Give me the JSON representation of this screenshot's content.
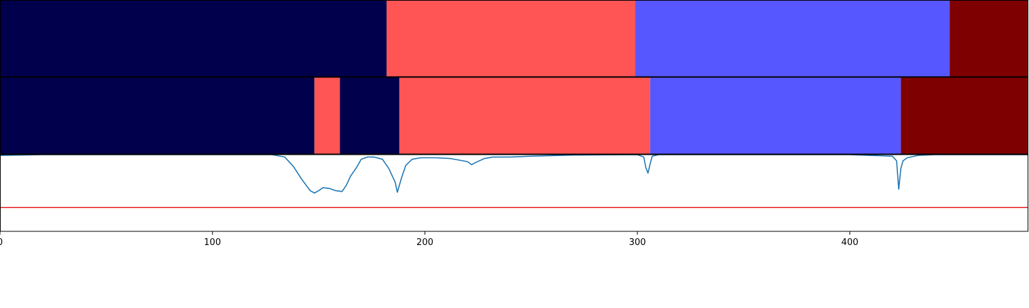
{
  "chart_data": [
    {
      "type": "segment_bar",
      "panel": "top",
      "segments": [
        {
          "start": 0,
          "end": 182,
          "color": "#00004c"
        },
        {
          "start": 182,
          "end": 299,
          "color": "#ff5555"
        },
        {
          "start": 299,
          "end": 447,
          "color": "#5757ff"
        },
        {
          "start": 447,
          "end": 484,
          "color": "#7f0000"
        }
      ]
    },
    {
      "type": "segment_bar",
      "panel": "middle",
      "segments": [
        {
          "start": 0,
          "end": 148,
          "color": "#00004c"
        },
        {
          "start": 148,
          "end": 160,
          "color": "#ff5555"
        },
        {
          "start": 160,
          "end": 188,
          "color": "#00004c"
        },
        {
          "start": 188,
          "end": 306,
          "color": "#ff5555"
        },
        {
          "start": 306,
          "end": 424,
          "color": "#5757ff"
        },
        {
          "start": 424,
          "end": 484,
          "color": "#7f0000"
        }
      ]
    },
    {
      "type": "line",
      "panel": "bottom",
      "xlim": [
        0,
        484
      ],
      "ylim": [
        0,
        1
      ],
      "line_color": "#1f77b4",
      "threshold": {
        "value": 0.31,
        "color": "#e41a1c"
      },
      "x": [
        0,
        20,
        60,
        100,
        128,
        134,
        138,
        142,
        146,
        148,
        150,
        152,
        155,
        158,
        161,
        163,
        165,
        168,
        170,
        173,
        176,
        180,
        183,
        186,
        187,
        189,
        191,
        194,
        198,
        205,
        212,
        220,
        222,
        224,
        228,
        232,
        240,
        250,
        270,
        300,
        303,
        304,
        305,
        306,
        307,
        310,
        350,
        400,
        420,
        422,
        423,
        424,
        425,
        427,
        432,
        440,
        484
      ],
      "y": [
        0.99,
        1.0,
        1.0,
        1.0,
        1.0,
        0.97,
        0.85,
        0.68,
        0.53,
        0.5,
        0.53,
        0.57,
        0.56,
        0.53,
        0.52,
        0.6,
        0.72,
        0.84,
        0.94,
        0.97,
        0.97,
        0.94,
        0.82,
        0.64,
        0.51,
        0.7,
        0.86,
        0.94,
        0.96,
        0.96,
        0.95,
        0.91,
        0.87,
        0.9,
        0.95,
        0.97,
        0.97,
        0.98,
        0.995,
        1.0,
        0.97,
        0.83,
        0.76,
        0.88,
        0.98,
        1.0,
        1.0,
        1.0,
        0.98,
        0.92,
        0.55,
        0.82,
        0.92,
        0.96,
        0.99,
        1.0,
        1.0
      ]
    }
  ],
  "x_axis": {
    "ticks": [
      0,
      100,
      200,
      300,
      400
    ],
    "tick_labels": [
      "0",
      "100",
      "200",
      "300",
      "400"
    ]
  }
}
